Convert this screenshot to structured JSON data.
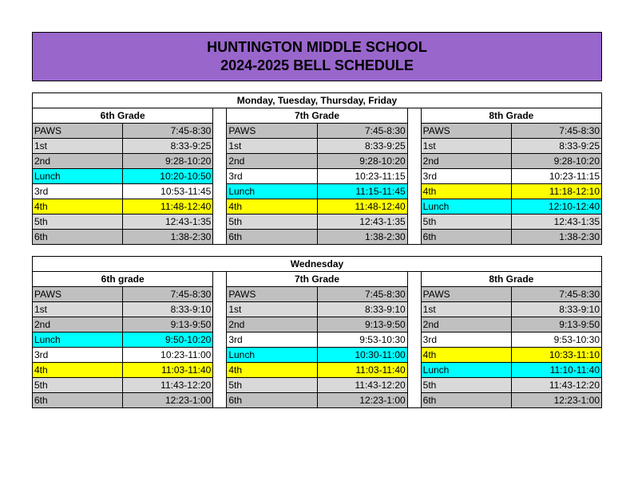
{
  "header": {
    "title1": "HUNTINGTON MIDDLE SCHOOL",
    "title2": "2024-2025 BELL SCHEDULE"
  },
  "colors": {
    "header_bg": "#9966cc",
    "gray": "#c0c0c0",
    "lightgray": "#d9d9d9",
    "white": "#ffffff",
    "cyan": "#00ffff",
    "yellow": "#ffff00"
  },
  "schedules": [
    {
      "day_label": "Monday, Tuesday, Thursday, Friday",
      "grades": [
        {
          "name": "6th Grade",
          "periods": [
            {
              "label": "PAWS",
              "time": "7:45-8:30",
              "bg": "gray"
            },
            {
              "label": "1st",
              "time": "8:33-9:25",
              "bg": "lightgray"
            },
            {
              "label": "2nd",
              "time": "9:28-10:20",
              "bg": "gray"
            },
            {
              "label": "Lunch",
              "time": "10:20-10:50",
              "bg": "cyan"
            },
            {
              "label": "3rd",
              "time": "10:53-11:45",
              "bg": "white"
            },
            {
              "label": "4th",
              "time": "11:48-12:40",
              "bg": "yellow"
            },
            {
              "label": "5th",
              "time": "12:43-1:35",
              "bg": "lightgray"
            },
            {
              "label": "6th",
              "time": "1:38-2:30",
              "bg": "gray"
            }
          ]
        },
        {
          "name": "7th Grade",
          "periods": [
            {
              "label": "PAWS",
              "time": "7:45-8:30",
              "bg": "gray"
            },
            {
              "label": "1st",
              "time": "8:33-9:25",
              "bg": "lightgray"
            },
            {
              "label": "2nd",
              "time": "9:28-10:20",
              "bg": "gray"
            },
            {
              "label": "3rd",
              "time": "10:23-11:15",
              "bg": "white"
            },
            {
              "label": "Lunch",
              "time": "11:15-11:45",
              "bg": "cyan"
            },
            {
              "label": "4th",
              "time": "11:48-12:40",
              "bg": "yellow"
            },
            {
              "label": "5th",
              "time": "12:43-1:35",
              "bg": "lightgray"
            },
            {
              "label": "6th",
              "time": "1:38-2:30",
              "bg": "gray"
            }
          ]
        },
        {
          "name": "8th Grade",
          "periods": [
            {
              "label": "PAWS",
              "time": "7:45-8:30",
              "bg": "gray"
            },
            {
              "label": "1st",
              "time": "8:33-9:25",
              "bg": "lightgray"
            },
            {
              "label": "2nd",
              "time": "9:28-10:20",
              "bg": "gray"
            },
            {
              "label": "3rd",
              "time": "10:23-11:15",
              "bg": "white"
            },
            {
              "label": "4th",
              "time": "11:18-12:10",
              "bg": "yellow"
            },
            {
              "label": "Lunch",
              "time": "12:10-12:40",
              "bg": "cyan"
            },
            {
              "label": "5th",
              "time": "12:43-1:35",
              "bg": "lightgray"
            },
            {
              "label": "6th",
              "time": "1:38-2:30",
              "bg": "gray"
            }
          ]
        }
      ]
    },
    {
      "day_label": "Wednesday",
      "grades": [
        {
          "name": "6th grade",
          "periods": [
            {
              "label": "PAWS",
              "time": "7:45-8:30",
              "bg": "gray"
            },
            {
              "label": "1st",
              "time": "8:33-9:10",
              "bg": "lightgray"
            },
            {
              "label": "2nd",
              "time": "9:13-9:50",
              "bg": "gray"
            },
            {
              "label": "Lunch",
              "time": "9:50-10:20",
              "bg": "cyan"
            },
            {
              "label": "3rd",
              "time": "10:23-11:00",
              "bg": "white"
            },
            {
              "label": "4th",
              "time": "11:03-11:40",
              "bg": "yellow"
            },
            {
              "label": "5th",
              "time": "11:43-12:20",
              "bg": "lightgray"
            },
            {
              "label": "6th",
              "time": "12:23-1:00",
              "bg": "gray"
            }
          ]
        },
        {
          "name": "7th Grade",
          "periods": [
            {
              "label": "PAWS",
              "time": "7:45-8:30",
              "bg": "gray"
            },
            {
              "label": "1st",
              "time": "8:33-9:10",
              "bg": "lightgray"
            },
            {
              "label": "2nd",
              "time": "9:13-9:50",
              "bg": "gray"
            },
            {
              "label": "3rd",
              "time": "9:53-10:30",
              "bg": "white"
            },
            {
              "label": "Lunch",
              "time": "10:30-11:00",
              "bg": "cyan"
            },
            {
              "label": "4th",
              "time": "11:03-11:40",
              "bg": "yellow"
            },
            {
              "label": "5th",
              "time": "11:43-12:20",
              "bg": "lightgray"
            },
            {
              "label": "6th",
              "time": "12:23-1:00",
              "bg": "gray"
            }
          ]
        },
        {
          "name": "8th Grade",
          "periods": [
            {
              "label": "PAWS",
              "time": "7:45-8:30",
              "bg": "gray"
            },
            {
              "label": "1st",
              "time": "8:33-9:10",
              "bg": "lightgray"
            },
            {
              "label": "2nd",
              "time": "9:13-9:50",
              "bg": "gray"
            },
            {
              "label": "3rd",
              "time": "9:53-10:30",
              "bg": "white"
            },
            {
              "label": "4th",
              "time": "10:33-11:10",
              "bg": "yellow"
            },
            {
              "label": "Lunch",
              "time": "11:10-11:40",
              "bg": "cyan"
            },
            {
              "label": "5th",
              "time": "11:43-12:20",
              "bg": "lightgray"
            },
            {
              "label": "6th",
              "time": "12:23-1:00",
              "bg": "gray"
            }
          ]
        }
      ]
    }
  ]
}
